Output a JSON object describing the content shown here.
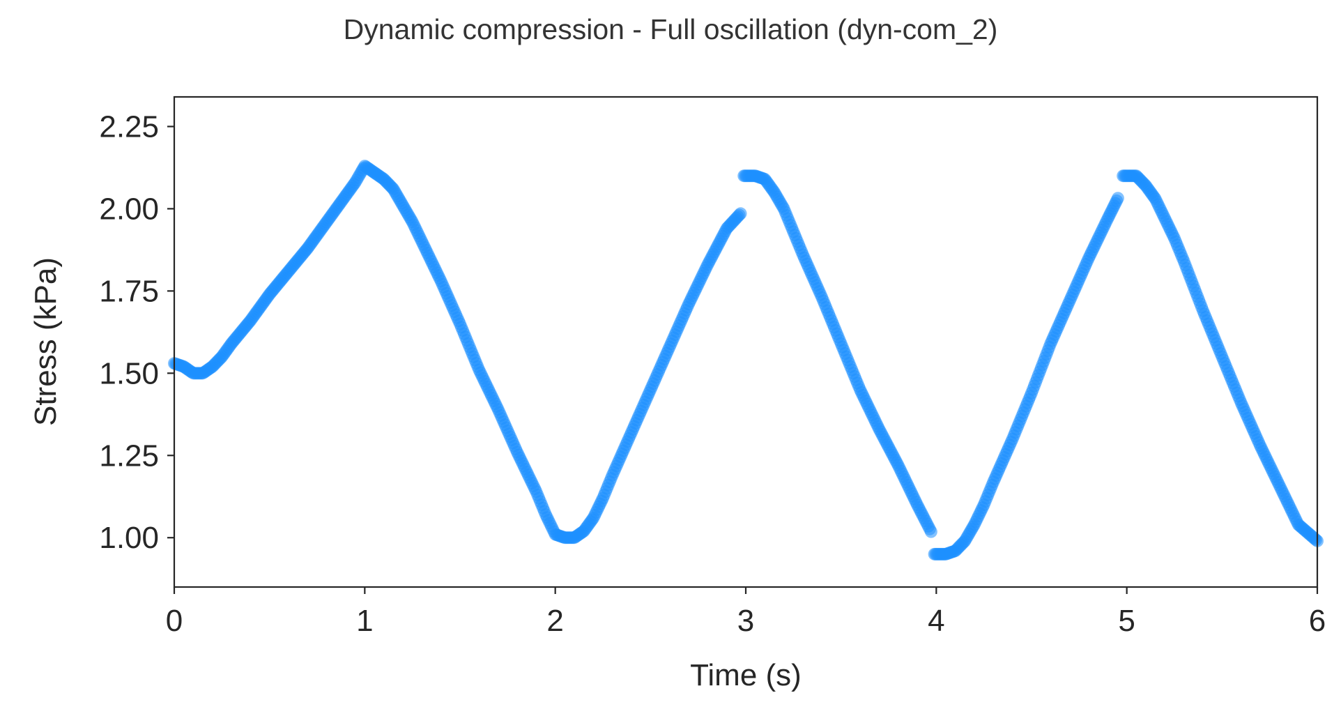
{
  "chart_data": {
    "type": "scatter",
    "title": "Dynamic compression - Full oscillation (dyn-com_2)",
    "xlabel": "Time (s)",
    "ylabel": "Stress (kPa)",
    "xlim": [
      0,
      6
    ],
    "ylim": [
      0.85,
      2.34
    ],
    "x_ticks": [
      0,
      1,
      2,
      3,
      4,
      5,
      6
    ],
    "x_tick_labels": [
      "0",
      "1",
      "2",
      "3",
      "4",
      "5",
      "6"
    ],
    "y_ticks": [
      1.0,
      1.25,
      1.5,
      1.75,
      2.0,
      2.25
    ],
    "y_tick_labels": [
      "1.00",
      "1.25",
      "1.50",
      "1.75",
      "2.00",
      "2.25"
    ],
    "grid": false,
    "legend": "none",
    "marker_color": "#1e90ff",
    "marker_alpha": 0.55,
    "series": [
      {
        "points": [
          [
            0.0,
            1.53
          ],
          [
            0.05,
            1.52
          ],
          [
            0.1,
            1.5
          ],
          [
            0.15,
            1.5
          ],
          [
            0.2,
            1.52
          ],
          [
            0.25,
            1.55
          ],
          [
            0.3,
            1.59
          ],
          [
            0.4,
            1.66
          ],
          [
            0.5,
            1.74
          ],
          [
            0.6,
            1.81
          ],
          [
            0.7,
            1.88
          ],
          [
            0.8,
            1.96
          ],
          [
            0.9,
            2.04
          ],
          [
            0.95,
            2.08
          ],
          [
            0.98,
            2.11
          ],
          [
            1.0,
            2.13
          ],
          [
            1.05,
            2.11
          ],
          [
            1.1,
            2.09
          ],
          [
            1.15,
            2.06
          ],
          [
            1.2,
            2.01
          ],
          [
            1.25,
            1.96
          ],
          [
            1.3,
            1.9
          ],
          [
            1.4,
            1.78
          ],
          [
            1.5,
            1.65
          ],
          [
            1.6,
            1.51
          ],
          [
            1.7,
            1.39
          ],
          [
            1.8,
            1.26
          ],
          [
            1.9,
            1.14
          ],
          [
            1.95,
            1.07
          ],
          [
            2.0,
            1.01
          ],
          [
            2.05,
            1.0
          ],
          [
            2.1,
            1.0
          ],
          [
            2.15,
            1.02
          ],
          [
            2.2,
            1.06
          ],
          [
            2.25,
            1.12
          ],
          [
            2.3,
            1.19
          ],
          [
            2.4,
            1.32
          ],
          [
            2.5,
            1.45
          ],
          [
            2.6,
            1.58
          ],
          [
            2.7,
            1.71
          ],
          [
            2.8,
            1.83
          ],
          [
            2.9,
            1.94
          ],
          [
            2.98,
            1.99
          ],
          [
            2.99,
            2.1
          ],
          [
            3.05,
            2.1
          ],
          [
            3.1,
            2.09
          ],
          [
            3.15,
            2.05
          ],
          [
            3.2,
            2.0
          ],
          [
            3.25,
            1.93
          ],
          [
            3.3,
            1.86
          ],
          [
            3.4,
            1.73
          ],
          [
            3.5,
            1.59
          ],
          [
            3.6,
            1.45
          ],
          [
            3.7,
            1.33
          ],
          [
            3.8,
            1.22
          ],
          [
            3.9,
            1.1
          ],
          [
            3.98,
            1.01
          ],
          [
            3.99,
            0.95
          ],
          [
            4.05,
            0.95
          ],
          [
            4.1,
            0.96
          ],
          [
            4.15,
            0.99
          ],
          [
            4.2,
            1.04
          ],
          [
            4.25,
            1.1
          ],
          [
            4.3,
            1.17
          ],
          [
            4.4,
            1.3
          ],
          [
            4.5,
            1.44
          ],
          [
            4.6,
            1.59
          ],
          [
            4.7,
            1.72
          ],
          [
            4.8,
            1.85
          ],
          [
            4.9,
            1.97
          ],
          [
            4.96,
            2.04
          ],
          [
            4.98,
            2.1
          ],
          [
            5.05,
            2.1
          ],
          [
            5.1,
            2.07
          ],
          [
            5.15,
            2.03
          ],
          [
            5.2,
            1.97
          ],
          [
            5.25,
            1.91
          ],
          [
            5.3,
            1.84
          ],
          [
            5.4,
            1.69
          ],
          [
            5.5,
            1.55
          ],
          [
            5.6,
            1.41
          ],
          [
            5.7,
            1.28
          ],
          [
            5.8,
            1.16
          ],
          [
            5.9,
            1.04
          ],
          [
            6.0,
            0.99
          ]
        ]
      }
    ]
  }
}
